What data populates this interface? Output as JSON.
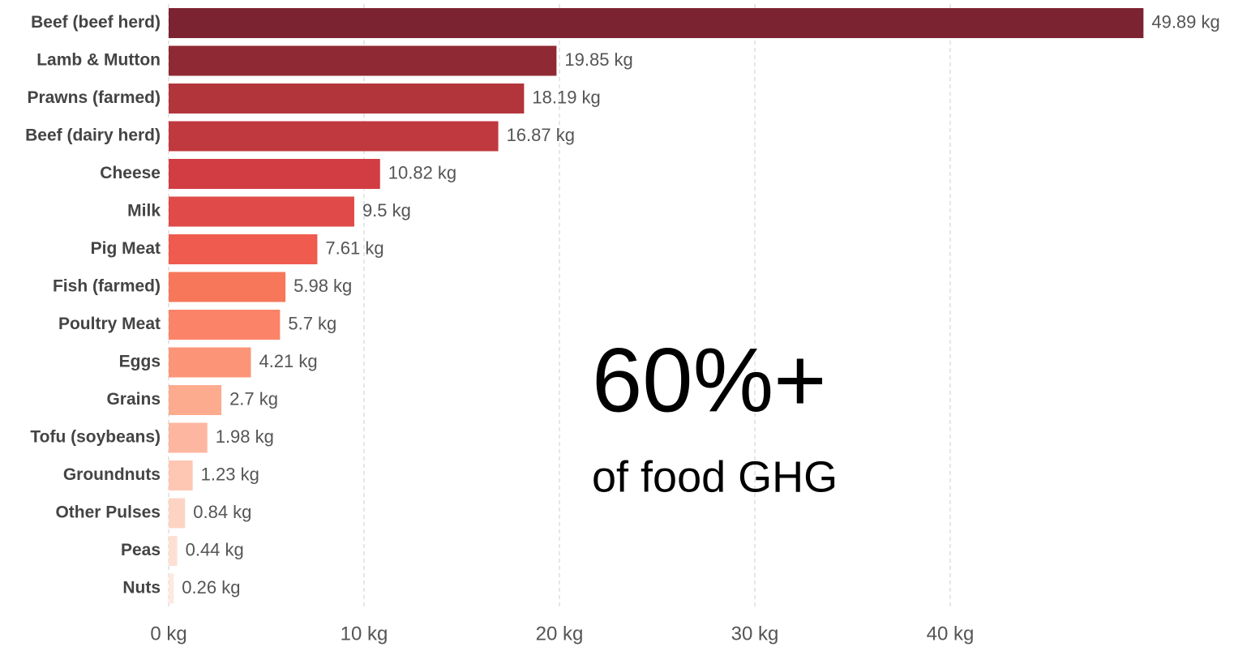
{
  "chart_data": {
    "type": "barh",
    "categories": [
      "Beef (beef herd)",
      "Lamb & Mutton",
      "Prawns (farmed)",
      "Beef (dairy herd)",
      "Cheese",
      "Milk",
      "Pig Meat",
      "Fish (farmed)",
      "Poultry Meat",
      "Eggs",
      "Grains",
      "Tofu (soybeans)",
      "Groundnuts",
      "Other Pulses",
      "Peas",
      "Nuts"
    ],
    "values": [
      49.89,
      19.85,
      18.19,
      16.87,
      10.82,
      9.5,
      7.61,
      5.98,
      5.7,
      4.21,
      2.7,
      1.98,
      1.23,
      0.84,
      0.44,
      0.26
    ],
    "value_labels": [
      "49.89 kg",
      "19.85 kg",
      "18.19 kg",
      "16.87 kg",
      "10.82 kg",
      "9.5 kg",
      "7.61 kg",
      "5.98 kg",
      "5.7 kg",
      "4.21 kg",
      "2.7 kg",
      "1.98 kg",
      "1.23 kg",
      "0.84 kg",
      "0.44 kg",
      "0.26 kg"
    ],
    "colors": [
      "#7c2331",
      "#8f2a35",
      "#b2353b",
      "#c0393f",
      "#d23d43",
      "#e04a48",
      "#ef5b4e",
      "#f7775b",
      "#fb8468",
      "#fc9577",
      "#fcab8f",
      "#fdb7a0",
      "#fdc7b3",
      "#fdd4c4",
      "#fde0d4",
      "#fee8df"
    ],
    "xlim": [
      0,
      50
    ],
    "xticks": [
      {
        "value": 0,
        "label": "0 kg"
      },
      {
        "value": 10,
        "label": "10 kg"
      },
      {
        "value": 20,
        "label": "20 kg"
      },
      {
        "value": 30,
        "label": "30 kg"
      },
      {
        "value": 40,
        "label": "40 kg"
      }
    ],
    "grid": true,
    "annotations": [
      "60%+",
      "of food GHG"
    ]
  }
}
